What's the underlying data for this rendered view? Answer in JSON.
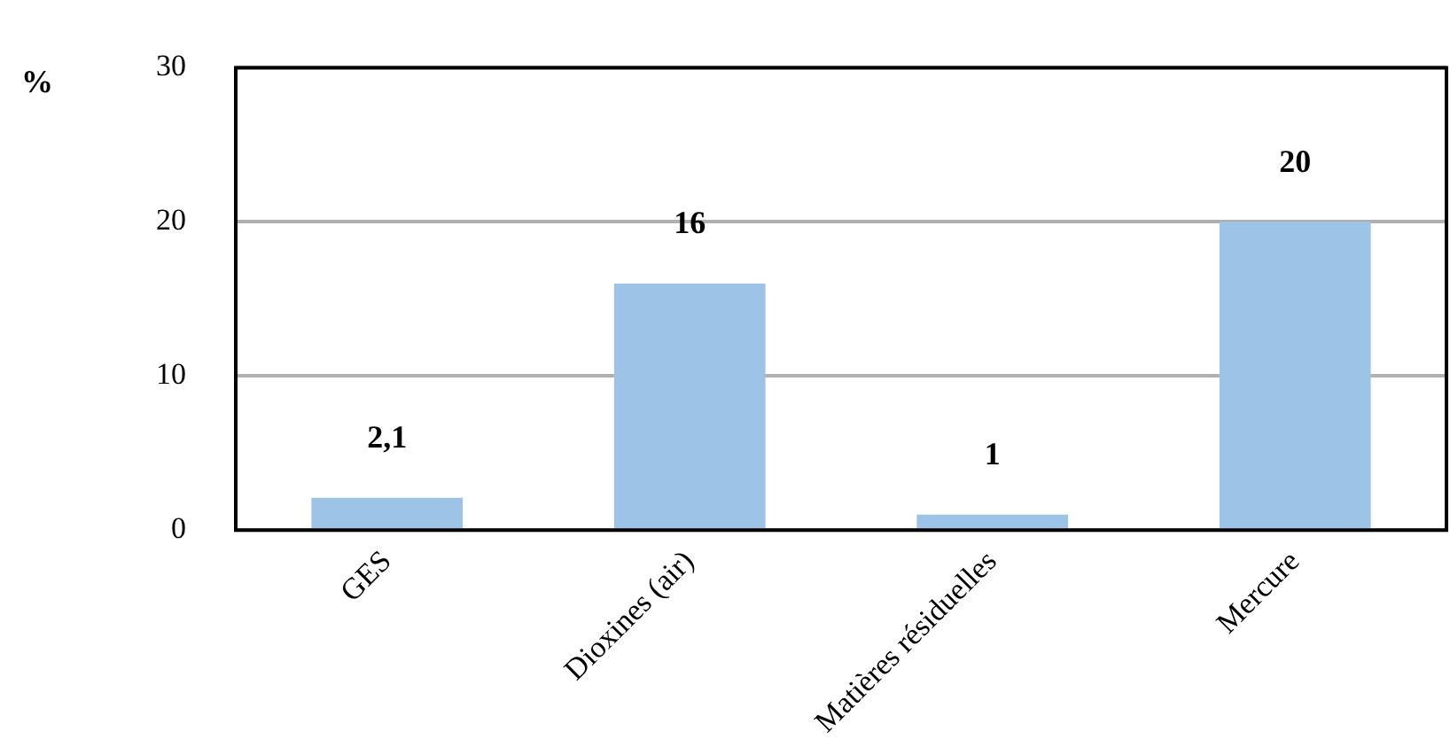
{
  "chart_data": {
    "type": "bar",
    "ylabel": "%",
    "categories": [
      "GES",
      "Dioxines (air)",
      "Matières résiduelles",
      "Mercure"
    ],
    "values": [
      2.1,
      16,
      1,
      20
    ],
    "value_labels": [
      "2,1",
      "16",
      "1",
      "20"
    ],
    "color": "#9dc3e6",
    "ylim": [
      0,
      30
    ],
    "yticks": [
      0,
      10,
      20,
      30
    ],
    "grid": "y",
    "legend": false
  }
}
